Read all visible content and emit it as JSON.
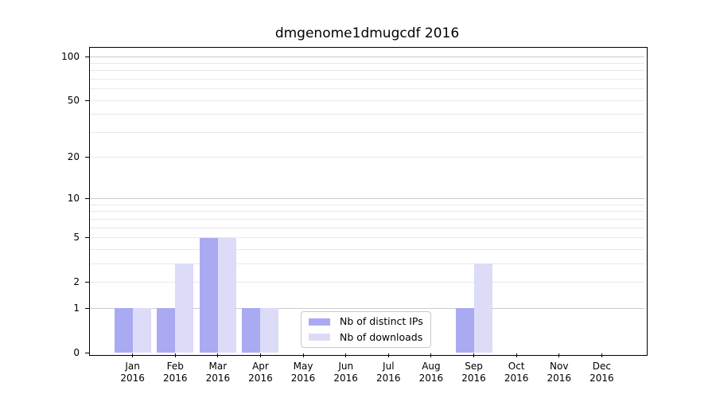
{
  "chart_data": {
    "type": "bar",
    "title": "dmgenome1dmugcdf 2016",
    "year": "2016",
    "categories": [
      "Jan",
      "Feb",
      "Mar",
      "Apr",
      "May",
      "Jun",
      "Jul",
      "Aug",
      "Sep",
      "Oct",
      "Nov",
      "Dec"
    ],
    "series": [
      {
        "key": "distinct-ips",
        "name": "Nb of distinct IPs",
        "color": "#aaaaf2",
        "values": [
          1,
          1,
          5,
          1,
          0,
          0,
          0,
          0,
          1,
          0,
          0,
          0
        ]
      },
      {
        "key": "downloads",
        "name": "Nb of downloads",
        "color": "#dcdcf8",
        "values": [
          1,
          3,
          5,
          1,
          0,
          0,
          0,
          0,
          3,
          0,
          0,
          0
        ]
      }
    ],
    "xlabel": "",
    "ylabel": "",
    "yscale": "log10(1+y)",
    "ylim": [
      0,
      115
    ],
    "yticks": [
      0,
      1,
      2,
      5,
      10,
      20,
      50,
      100
    ],
    "minor_gridline_values": [
      2,
      3,
      4,
      5,
      6,
      7,
      8,
      9,
      20,
      30,
      40,
      50,
      60,
      70,
      80,
      90
    ],
    "major_gridline_values": [
      1,
      10,
      100
    ],
    "grid": true,
    "legend_position": "lower center",
    "colors": {
      "grid_minor": "#e9e9e9",
      "grid_major": "#cccccc",
      "spine": "#000000",
      "tick": "#000000",
      "legend_border": "#c8c8c8",
      "background": "#ffffff"
    }
  }
}
